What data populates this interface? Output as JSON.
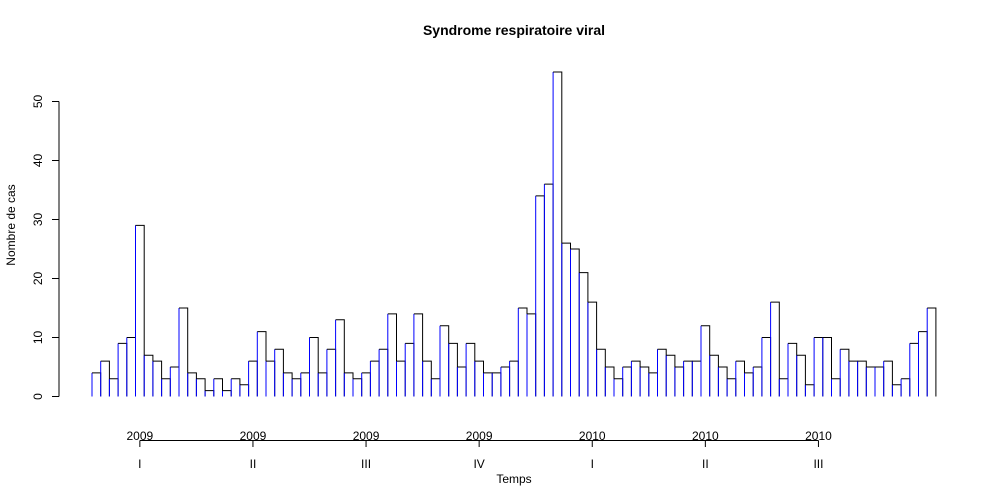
{
  "chart_data": {
    "type": "bar",
    "title": "Syndrome respiratoire viral",
    "xlabel": "Temps",
    "ylabel": "Nombre de cas",
    "ylim": [
      0,
      55
    ],
    "yticks": [
      0,
      10,
      20,
      30,
      40,
      50
    ],
    "values": [
      4,
      6,
      3,
      9,
      10,
      29,
      7,
      6,
      3,
      5,
      15,
      4,
      3,
      1,
      3,
      1,
      3,
      2,
      6,
      11,
      6,
      8,
      4,
      3,
      4,
      10,
      4,
      8,
      13,
      4,
      3,
      4,
      6,
      8,
      14,
      6,
      9,
      14,
      6,
      3,
      12,
      9,
      5,
      9,
      6,
      4,
      4,
      5,
      6,
      15,
      14,
      34,
      36,
      55,
      26,
      25,
      21,
      16,
      8,
      5,
      3,
      5,
      6,
      5,
      4,
      8,
      7,
      5,
      6,
      6,
      12,
      7,
      5,
      3,
      6,
      4,
      5,
      10,
      16,
      3,
      9,
      7,
      2,
      10,
      10,
      3,
      8,
      6,
      6,
      5,
      5,
      6,
      2,
      3,
      9,
      11,
      15
    ],
    "period_labels": [
      {
        "year": "2009",
        "quarter": "I",
        "bar_index": 5
      },
      {
        "year": "2009",
        "quarter": "II",
        "bar_index": 18
      },
      {
        "year": "2009",
        "quarter": "III",
        "bar_index": 31
      },
      {
        "year": "2009",
        "quarter": "IV",
        "bar_index": 44
      },
      {
        "year": "2010",
        "quarter": "I",
        "bar_index": 57
      },
      {
        "year": "2010",
        "quarter": "II",
        "bar_index": 70
      },
      {
        "year": "2010",
        "quarter": "III",
        "bar_index": 83
      }
    ],
    "bar_edge_colors": {
      "left": "#0000ff",
      "right": "#000000"
    },
    "grid": false,
    "legend": "none"
  }
}
